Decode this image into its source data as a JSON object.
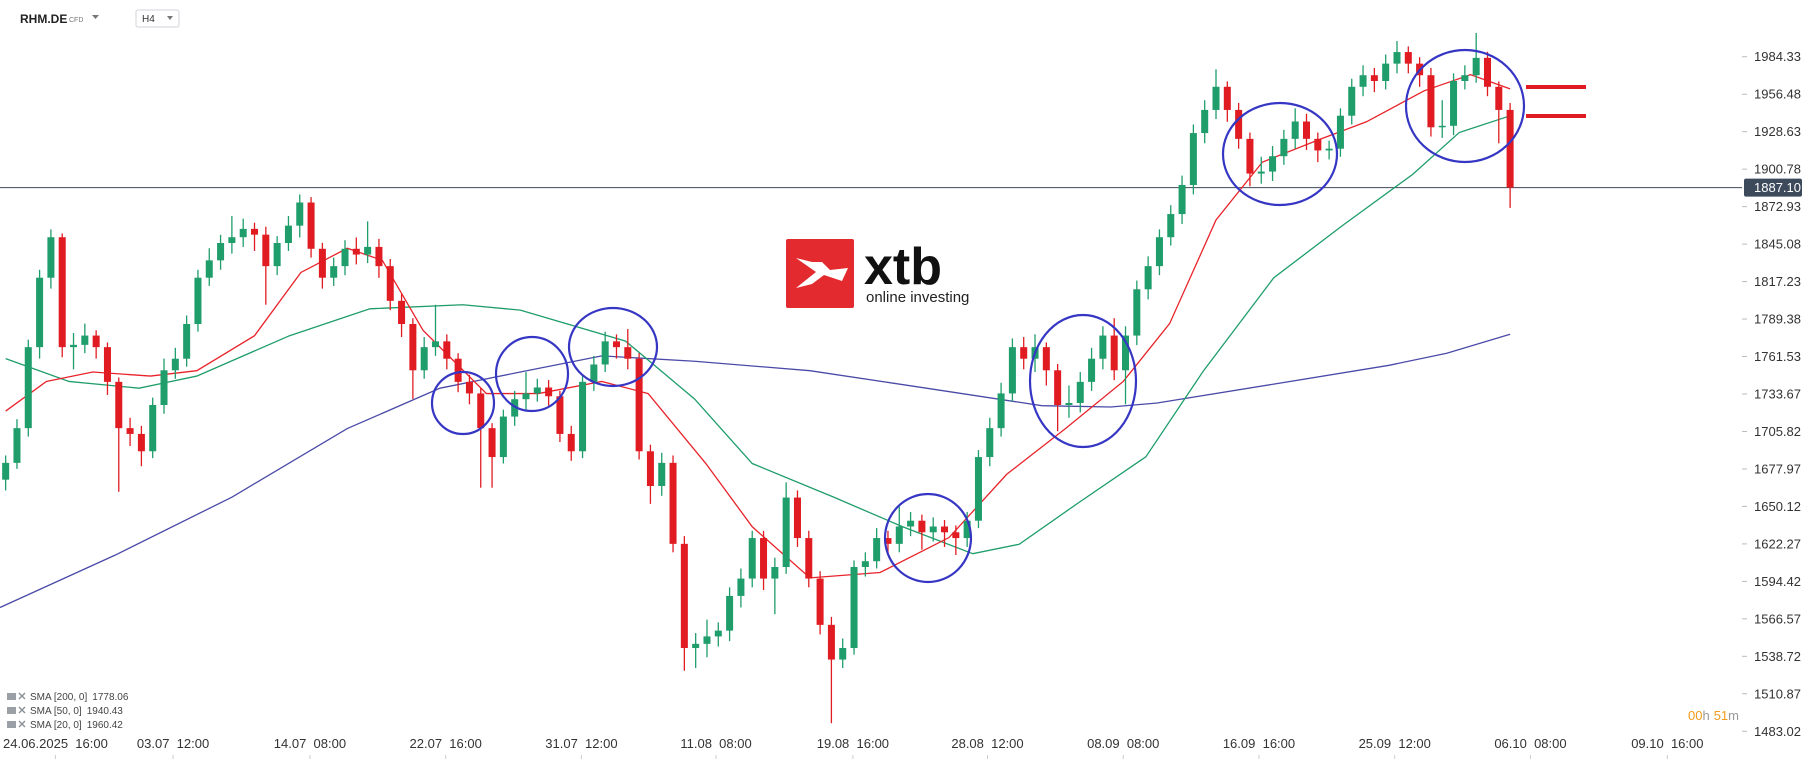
{
  "header": {
    "symbol": "RHM.DE",
    "market": "CFD",
    "interval": "H4"
  },
  "logo": {
    "brand": "xtb",
    "tagline": "online investing"
  },
  "timer": {
    "hours": "00",
    "hours_unit": "h",
    "minutes": "51",
    "minutes_unit": "m"
  },
  "chart_data": {
    "type": "candlestick",
    "up_color": "#1f9d6b",
    "down_color": "#e01c22",
    "grid": false,
    "xlim": [
      -0.5,
      153.5
    ],
    "ylim": [
      1462.4,
      2026.5
    ],
    "xticks": [
      {
        "value": 4.4,
        "label": "24.06.2025  16:00"
      },
      {
        "value": 14.8,
        "label": "03.07  12:00"
      },
      {
        "value": 26.9,
        "label": "14.07  08:00"
      },
      {
        "value": 38.9,
        "label": "22.07  16:00"
      },
      {
        "value": 50.9,
        "label": "31.07  12:00"
      },
      {
        "value": 62.8,
        "label": "11.08  08:00"
      },
      {
        "value": 74.9,
        "label": "19.08  16:00"
      },
      {
        "value": 86.8,
        "label": "28.08  12:00"
      },
      {
        "value": 98.8,
        "label": "08.09  08:00"
      },
      {
        "value": 110.8,
        "label": "16.09  16:00"
      },
      {
        "value": 122.8,
        "label": "25.09  12:00"
      },
      {
        "value": 134.8,
        "label": "06.10  08:00"
      },
      {
        "value": 146.9,
        "label": "09.10  16:00"
      }
    ],
    "yticks": [
      1984.33,
      1956.48,
      1928.63,
      1900.78,
      1872.93,
      1845.08,
      1817.23,
      1789.38,
      1761.53,
      1733.67,
      1705.82,
      1677.97,
      1650.12,
      1622.27,
      1594.42,
      1566.57,
      1538.72,
      1510.87,
      1483.02
    ],
    "current_price": {
      "value": 1887.1,
      "label": "1887.10"
    },
    "open": [
      1670.0,
      1682.5,
      1708.3,
      1768.5,
      1820.1,
      1850.2,
      1768.5,
      1770.2,
      1777.1,
      1768.5,
      1742.7,
      1708.3,
      1704.0,
      1691.1,
      1725.5,
      1751.3,
      1759.9,
      1785.7,
      1820.1,
      1833.0,
      1845.9,
      1850.2,
      1856.4,
      1852.1,
      1828.7,
      1845.9,
      1858.8,
      1876.0,
      1841.6,
      1820.1,
      1828.7,
      1841.6,
      1837.3,
      1843.0,
      1828.7,
      1802.9,
      1785.7,
      1751.3,
      1768.5,
      1772.8,
      1759.9,
      1742.7,
      1734.1,
      1708.3,
      1686.8,
      1716.9,
      1729.8,
      1734.1,
      1738.5,
      1732.0,
      1704.0,
      1691.1,
      1742.7,
      1755.6,
      1772.8,
      1768.5,
      1759.9,
      1691.1,
      1665.3,
      1682.5,
      1622.3,
      1544.9,
      1548.0,
      1553.5,
      1557.8,
      1583.6,
      1596.5,
      1626.6,
      1596.5,
      1605.1,
      1656.7,
      1626.6,
      1596.5,
      1562.1,
      1536.3,
      1544.9,
      1605.1,
      1609.4,
      1626.6,
      1622.3,
      1635.2,
      1639.5,
      1630.9,
      1635.2,
      1630.9,
      1626.6,
      1639.5,
      1686.8,
      1708.3,
      1734.1,
      1768.5,
      1759.9,
      1768.5,
      1751.3,
      1725.5,
      1727.0,
      1742.7,
      1759.9,
      1777.1,
      1751.3,
      1777.1,
      1811.5,
      1828.7,
      1850.2,
      1867.4,
      1889.0,
      1927.6,
      1944.8,
      1962.0,
      1944.8,
      1923.3,
      1897.5,
      1899.0,
      1910.4,
      1923.3,
      1936.2,
      1923.3,
      1914.7,
      1916.0,
      1940.5,
      1962.0,
      1970.6,
      1966.3,
      1979.2,
      1987.8,
      1979.2,
      1970.6,
      1931.9,
      1933.0,
      1966.3,
      1970.6,
      1983.5,
      1962.0,
      1944.8
    ],
    "high": [
      1688,
      1715,
      1774,
      1826,
      1856,
      1853,
      1779,
      1786,
      1781,
      1772,
      1746,
      1716,
      1710,
      1731,
      1760,
      1768,
      1792,
      1826,
      1842,
      1852,
      1866,
      1864,
      1861,
      1858,
      1851,
      1866,
      1882,
      1880,
      1846,
      1835,
      1848,
      1850,
      1862,
      1849,
      1834,
      1808,
      1790,
      1776,
      1800,
      1778,
      1764,
      1748,
      1738,
      1712,
      1722,
      1736,
      1750,
      1745,
      1744,
      1736,
      1710,
      1748,
      1762,
      1780,
      1778,
      1782,
      1764,
      1696,
      1690,
      1688,
      1628,
      1556,
      1566,
      1564,
      1590,
      1604,
      1632,
      1632,
      1612,
      1668,
      1662,
      1632,
      1602,
      1568,
      1552,
      1610,
      1616,
      1634,
      1632,
      1650,
      1646,
      1644,
      1642,
      1640,
      1636,
      1646,
      1692,
      1716,
      1742,
      1775,
      1776,
      1778,
      1772,
      1756,
      1740,
      1750,
      1768,
      1784,
      1790,
      1784,
      1818,
      1836,
      1856,
      1874,
      1896,
      1934,
      1952,
      1975,
      1966,
      1950,
      1928,
      1910,
      1918,
      1930,
      1946,
      1942,
      1928,
      1922,
      1946,
      1968,
      1978,
      1976,
      1986,
      1996,
      1992,
      1984,
      1976,
      1952,
      1972,
      1978,
      2002,
      1988,
      1966,
      1950
    ],
    "low": [
      1662,
      1678,
      1702,
      1760,
      1812,
      1761,
      1752,
      1764,
      1760,
      1733,
      1661,
      1695,
      1680,
      1686,
      1719,
      1745,
      1754,
      1780,
      1814,
      1826,
      1838,
      1843,
      1840,
      1800,
      1822,
      1840,
      1850,
      1835,
      1812,
      1814,
      1822,
      1830,
      1831,
      1820,
      1796,
      1776,
      1730,
      1745,
      1762,
      1752,
      1735,
      1726,
      1664,
      1664,
      1682,
      1710,
      1722,
      1728,
      1725,
      1698,
      1684,
      1686,
      1736,
      1750,
      1760,
      1752,
      1685,
      1652,
      1658,
      1616,
      1528,
      1530,
      1538,
      1546,
      1550,
      1575,
      1590,
      1588,
      1570,
      1600,
      1620,
      1590,
      1555,
      1489,
      1530,
      1540,
      1598,
      1604,
      1614,
      1616,
      1628,
      1618,
      1624,
      1620,
      1614,
      1620,
      1634,
      1680,
      1702,
      1728,
      1752,
      1750,
      1740,
      1706,
      1716,
      1720,
      1736,
      1752,
      1744,
      1726,
      1770,
      1804,
      1822,
      1844,
      1860,
      1882,
      1920,
      1938,
      1936,
      1916,
      1888,
      1890,
      1892,
      1904,
      1916,
      1915,
      1906,
      1908,
      1910,
      1934,
      1955,
      1958,
      1960,
      1972,
      1972,
      1962,
      1925,
      1924,
      1926,
      1960,
      1965,
      1955,
      1920,
      1872
    ],
    "close": [
      1682.5,
      1708.3,
      1768.5,
      1820.1,
      1850.2,
      1768.5,
      1770.2,
      1777.1,
      1768.5,
      1742.7,
      1708.3,
      1704.0,
      1691.1,
      1725.5,
      1751.3,
      1759.9,
      1785.7,
      1820.1,
      1833.0,
      1845.9,
      1850.2,
      1856.4,
      1852.1,
      1828.7,
      1845.9,
      1858.8,
      1876.0,
      1841.6,
      1820.1,
      1828.7,
      1841.6,
      1837.3,
      1843.0,
      1828.7,
      1802.9,
      1785.7,
      1751.3,
      1768.5,
      1772.8,
      1759.9,
      1742.7,
      1734.1,
      1708.3,
      1686.8,
      1716.9,
      1729.8,
      1734.1,
      1738.5,
      1732.0,
      1704.0,
      1691.1,
      1742.7,
      1755.6,
      1772.8,
      1768.5,
      1759.9,
      1691.1,
      1665.3,
      1682.5,
      1622.3,
      1544.9,
      1548.0,
      1553.5,
      1557.8,
      1583.6,
      1596.5,
      1626.6,
      1596.5,
      1605.1,
      1656.7,
      1626.6,
      1596.5,
      1562.1,
      1536.3,
      1544.9,
      1605.1,
      1609.4,
      1626.6,
      1622.3,
      1635.2,
      1639.5,
      1630.9,
      1635.2,
      1630.9,
      1626.6,
      1639.5,
      1686.8,
      1708.3,
      1734.1,
      1768.5,
      1759.9,
      1768.5,
      1751.3,
      1725.5,
      1727.0,
      1742.7,
      1759.9,
      1777.1,
      1751.3,
      1777.1,
      1811.5,
      1828.7,
      1850.2,
      1867.4,
      1889.0,
      1927.6,
      1944.8,
      1962.0,
      1944.8,
      1923.3,
      1897.5,
      1899.0,
      1910.4,
      1923.3,
      1936.2,
      1923.3,
      1914.7,
      1916.0,
      1940.5,
      1962.0,
      1970.6,
      1966.3,
      1979.2,
      1987.8,
      1979.2,
      1970.6,
      1931.9,
      1933.0,
      1966.3,
      1970.6,
      1983.5,
      1962.0,
      1944.8,
      1887.1
    ],
    "series": [
      {
        "name": "SMA [200, 0]",
        "color": "#4a4aa8",
        "x": [
          -0.5,
          9.7,
          20,
          30.2,
          38.4,
          45.5,
          52.7,
          60.9,
          71.1,
          81.4,
          91.6,
          97.7,
          101.8,
          112.1,
          122.3,
          127.4,
          133
        ],
        "values": [
          1575,
          1614,
          1657,
          1708,
          1738,
          1750,
          1762,
          1758,
          1751,
          1738,
          1725,
          1724,
          1727,
          1741,
          1755,
          1764,
          1778.06
        ]
      },
      {
        "name": "SMA [50, 0]",
        "color": "#1e9d6a",
        "x": [
          0,
          5.6,
          11.8,
          16.9,
          25.1,
          32.2,
          40.4,
          45.5,
          54.8,
          60.9,
          66,
          73.2,
          79.3,
          85.5,
          89.6,
          94.7,
          100.8,
          105.9,
          112.1,
          118.2,
          124.4,
          128.5,
          133
        ],
        "values": [
          1760,
          1743,
          1738,
          1747,
          1777,
          1797,
          1800,
          1796,
          1773,
          1730,
          1682,
          1657,
          1635,
          1615,
          1622,
          1652,
          1687,
          1751,
          1820,
          1859,
          1897,
          1928,
          1940.43
        ]
      },
      {
        "name": "SMA [20, 0]",
        "color": "#e8232a",
        "x": [
          0,
          3.6,
          7.7,
          12.8,
          16.9,
          22,
          26.1,
          30.2,
          33.3,
          36.9,
          42.5,
          47.1,
          52.7,
          56.8,
          61.9,
          66,
          71.1,
          77.3,
          83.4,
          88.5,
          93.7,
          98.8,
          102.9,
          107,
          111.1,
          116.2,
          120.3,
          125.4,
          129.5,
          133
        ],
        "values": [
          1721,
          1743,
          1750,
          1747,
          1751,
          1777,
          1824,
          1842,
          1833,
          1781,
          1734,
          1734,
          1743,
          1734,
          1682,
          1635,
          1597,
          1601,
          1627,
          1674,
          1708,
          1743,
          1786,
          1863,
          1906,
          1923,
          1936,
          1959,
          1971,
          1960.42
        ]
      }
    ]
  }
}
